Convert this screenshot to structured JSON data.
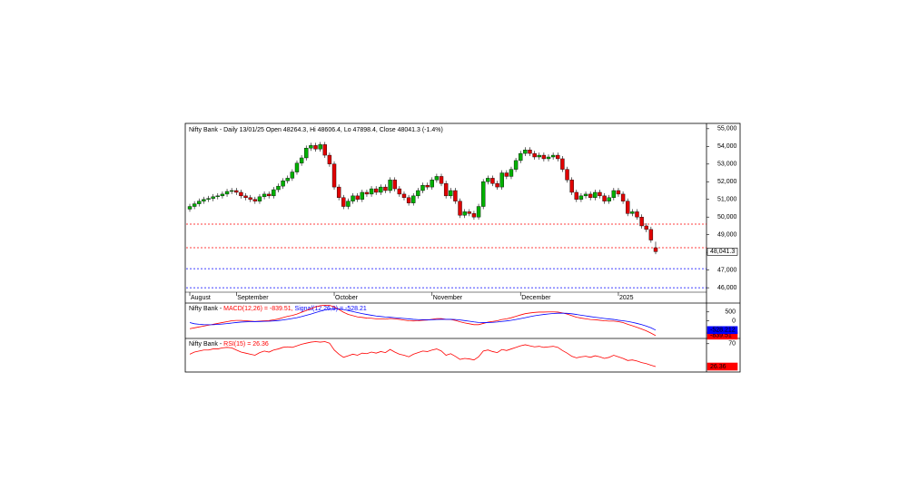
{
  "chart_data": [
    {
      "type": "candlestick",
      "title": "Nifty Bank - Daily 13/01/25 Open 48264.3, Hi 48606.4, Lo 47898.4, Close 48041.3 (-1.4%)",
      "categories": [
        "August",
        null,
        null,
        null,
        null,
        null,
        null,
        null,
        null,
        null,
        "September",
        null,
        null,
        null,
        null,
        null,
        null,
        null,
        null,
        null,
        null,
        null,
        null,
        null,
        null,
        null,
        null,
        null,
        null,
        null,
        null,
        "October",
        null,
        null,
        null,
        null,
        null,
        null,
        null,
        null,
        null,
        null,
        null,
        null,
        null,
        null,
        null,
        null,
        null,
        null,
        null,
        null,
        "November",
        null,
        null,
        null,
        null,
        null,
        null,
        null,
        null,
        null,
        null,
        null,
        null,
        null,
        null,
        null,
        null,
        null,
        null,
        "December",
        null,
        null,
        null,
        null,
        null,
        null,
        null,
        null,
        null,
        null,
        null,
        null,
        null,
        null,
        null,
        null,
        null,
        null,
        null,
        null,
        "2025",
        null,
        null,
        null,
        null,
        null,
        null,
        null,
        null
      ],
      "open": [
        50450,
        50600,
        50750,
        50900,
        51000,
        51050,
        51150,
        51200,
        51300,
        51450,
        51500,
        51400,
        51200,
        51100,
        51000,
        50900,
        51150,
        51300,
        51200,
        51550,
        51750,
        52050,
        52200,
        52550,
        53050,
        53350,
        53900,
        54050,
        53850,
        54100,
        53500,
        53000,
        51700,
        51100,
        50600,
        50900,
        51200,
        51000,
        51400,
        51300,
        51600,
        51400,
        51700,
        51500,
        52100,
        51600,
        51300,
        51100,
        50800,
        51200,
        51500,
        51800,
        51700,
        52100,
        52300,
        51900,
        51200,
        51500,
        50900,
        50100,
        50300,
        50200,
        50000,
        50600,
        52000,
        52200,
        51900,
        51700,
        52500,
        52300,
        52700,
        53200,
        53600,
        53800,
        53600,
        53400,
        53500,
        53300,
        53400,
        53500,
        53300,
        52700,
        52100,
        51400,
        51000,
        51200,
        51300,
        51100,
        51400,
        51200,
        50900,
        51100,
        51500,
        51300,
        50900,
        50200,
        50300,
        50000,
        49500,
        49300,
        48264.3
      ],
      "high": [
        50750,
        50900,
        51050,
        51150,
        51200,
        51300,
        51350,
        51450,
        51600,
        51650,
        51650,
        51550,
        51350,
        51250,
        51150,
        51300,
        51450,
        51450,
        51700,
        51900,
        52200,
        52350,
        52700,
        53200,
        53500,
        54050,
        54200,
        54200,
        54250,
        54250,
        53650,
        53150,
        51850,
        51250,
        51050,
        51350,
        51350,
        51550,
        51550,
        51750,
        51750,
        51850,
        51850,
        52250,
        52250,
        51750,
        51450,
        51250,
        51350,
        51650,
        51950,
        51950,
        52250,
        52450,
        52450,
        52050,
        51650,
        51650,
        51050,
        50450,
        50450,
        50350,
        50750,
        52150,
        52350,
        52350,
        52050,
        52650,
        52650,
        52850,
        53350,
        53750,
        53950,
        53950,
        53750,
        53650,
        53650,
        53550,
        53650,
        53650,
        53450,
        52850,
        52250,
        51550,
        51350,
        51450,
        51450,
        51550,
        51550,
        51350,
        51250,
        51650,
        51650,
        51450,
        51050,
        50450,
        50450,
        50150,
        49650,
        49450,
        48606.4
      ],
      "low": [
        50300,
        50450,
        50600,
        50750,
        50850,
        50900,
        51000,
        51050,
        51150,
        51300,
        51250,
        51050,
        50950,
        50850,
        50750,
        50750,
        51000,
        51050,
        51050,
        51400,
        51600,
        51900,
        52050,
        52400,
        52900,
        53200,
        53750,
        53700,
        53700,
        53350,
        52850,
        51550,
        50950,
        50450,
        50450,
        50750,
        50850,
        50850,
        51150,
        51150,
        51250,
        51250,
        51350,
        51350,
        51450,
        51150,
        50950,
        50650,
        50650,
        51050,
        51350,
        51550,
        51550,
        51950,
        51750,
        51050,
        51050,
        50750,
        49950,
        49950,
        50050,
        49850,
        49850,
        50450,
        51850,
        51750,
        51550,
        51550,
        52150,
        52150,
        52550,
        53050,
        53450,
        53450,
        53250,
        53250,
        53150,
        53150,
        53250,
        53150,
        52550,
        51950,
        51250,
        50850,
        50850,
        51050,
        50950,
        50950,
        51050,
        50750,
        50750,
        50950,
        51150,
        50750,
        50050,
        50050,
        49850,
        49350,
        49150,
        48550,
        47898.4
      ],
      "close": [
        50600,
        50750,
        50900,
        51000,
        51050,
        51150,
        51200,
        51300,
        51450,
        51500,
        51400,
        51200,
        51100,
        51000,
        50900,
        51150,
        51300,
        51200,
        51550,
        51750,
        52050,
        52200,
        52550,
        53050,
        53350,
        53900,
        54050,
        53850,
        54100,
        53500,
        53000,
        51700,
        51100,
        50600,
        50900,
        51200,
        51000,
        51400,
        51300,
        51600,
        51400,
        51700,
        51500,
        52100,
        51600,
        51300,
        51100,
        50800,
        51200,
        51500,
        51800,
        51700,
        52100,
        52300,
        51900,
        51200,
        51500,
        50900,
        50100,
        50300,
        50200,
        50000,
        50600,
        52000,
        52200,
        51900,
        51700,
        52500,
        52300,
        52700,
        53200,
        53600,
        53800,
        53600,
        53400,
        53500,
        53300,
        53400,
        53500,
        53300,
        52700,
        52100,
        51400,
        51000,
        51200,
        51300,
        51100,
        51400,
        51200,
        50900,
        51100,
        51500,
        51300,
        50900,
        50200,
        50300,
        50000,
        49500,
        49300,
        48700,
        48041.3
      ],
      "up_color": "#00b000",
      "down_color": "#e00000",
      "last_label": "48,041.3",
      "hlines": [
        {
          "value": 49600,
          "color": "#ff0000"
        },
        {
          "value": 48264.3,
          "color": "#ff0000"
        },
        {
          "value": 47080,
          "color": "#0000ff"
        },
        {
          "value": 46000,
          "color": "#0000ff"
        }
      ],
      "ylim": [
        45750,
        55300
      ],
      "yticks": [
        {
          "value": 46000,
          "label": "46,000"
        },
        {
          "value": 47000,
          "label": "47,000"
        },
        {
          "value": 48000,
          "label": "48,000"
        },
        {
          "value": 49000,
          "label": "49,000"
        },
        {
          "value": 50000,
          "label": "50,000"
        },
        {
          "value": 51000,
          "label": "51,000"
        },
        {
          "value": 52000,
          "label": "52,000"
        },
        {
          "value": 53000,
          "label": "53,000"
        },
        {
          "value": 54000,
          "label": "54,000"
        },
        {
          "value": 55000,
          "label": "55,000"
        }
      ]
    },
    {
      "type": "line",
      "title": "Nifty Bank -",
      "series": [
        {
          "name": "MACD(12,26) = -839.51,",
          "color": "#ff0000",
          "last_label": "-839.51",
          "values": [
            -450,
            -400,
            -350,
            -300,
            -250,
            -200,
            -150,
            -100,
            -50,
            0,
            20,
            20,
            0,
            -20,
            -40,
            -20,
            0,
            10,
            50,
            100,
            180,
            250,
            300,
            380,
            480,
            580,
            680,
            780,
            850,
            880,
            870,
            780,
            640,
            480,
            360,
            290,
            220,
            190,
            150,
            140,
            110,
            110,
            90,
            130,
            110,
            80,
            40,
            0,
            -10,
            0,
            30,
            40,
            80,
            120,
            120,
            80,
            70,
            20,
            -60,
            -120,
            -170,
            -220,
            -220,
            -150,
            -80,
            -40,
            0,
            70,
            110,
            170,
            250,
            330,
            400,
            440,
            470,
            490,
            490,
            500,
            500,
            490,
            440,
            380,
            290,
            200,
            150,
            110,
            70,
            60,
            30,
            0,
            -20,
            -20,
            -50,
            -100,
            -200,
            -280,
            -370,
            -470,
            -570,
            -700,
            -839.51
          ]
        },
        {
          "name": "Signal(12,26,9) = -528.21",
          "color": "#0000ff",
          "last_label": "-528.212",
          "values": [
            -100,
            -170,
            -200,
            -220,
            -225,
            -220,
            -205,
            -185,
            -160,
            -130,
            -100,
            -75,
            -60,
            -50,
            -48,
            -42,
            -34,
            -25,
            -10,
            10,
            45,
            85,
            130,
            175,
            235,
            305,
            380,
            460,
            540,
            610,
            660,
            685,
            675,
            635,
            580,
            520,
            460,
            405,
            355,
            310,
            270,
            240,
            210,
            195,
            175,
            155,
            130,
            105,
            80,
            65,
            60,
            55,
            60,
            70,
            80,
            80,
            80,
            70,
            45,
            10,
            -25,
            -65,
            -95,
            -105,
            -100,
            -90,
            -70,
            -40,
            -10,
            25,
            70,
            120,
            175,
            230,
            280,
            320,
            355,
            385,
            410,
            425,
            430,
            420,
            395,
            355,
            315,
            275,
            235,
            200,
            165,
            130,
            100,
            75,
            30,
            0,
            -40,
            -90,
            -150,
            -220,
            -300,
            -400,
            -528.21
          ]
        }
      ],
      "ylim": [
        -1000,
        1000
      ],
      "yticks": [
        500,
        0
      ]
    },
    {
      "type": "line",
      "title": "Nifty Bank -",
      "series": [
        {
          "name": "RSI(15) = 26.36",
          "color": "#ff0000",
          "last_label": "26.36",
          "values": [
            50,
            54,
            56,
            58,
            58,
            60,
            60,
            62,
            63,
            62,
            58,
            54,
            52,
            50,
            48,
            53,
            56,
            54,
            58,
            60,
            63,
            64,
            63,
            66,
            69,
            71,
            73,
            74,
            73,
            74,
            71,
            58,
            50,
            44,
            47,
            50,
            48,
            52,
            51,
            54,
            52,
            55,
            53,
            59,
            54,
            50,
            48,
            45,
            50,
            53,
            56,
            55,
            58,
            60,
            56,
            48,
            51,
            46,
            40,
            42,
            41,
            39,
            45,
            56,
            58,
            55,
            53,
            59,
            57,
            60,
            63,
            66,
            68,
            66,
            64,
            65,
            63,
            64,
            65,
            63,
            57,
            52,
            46,
            43,
            45,
            46,
            44,
            47,
            45,
            42,
            44,
            48,
            45,
            42,
            38,
            39,
            37,
            34,
            32,
            29,
            26.36
          ]
        }
      ],
      "ylim": [
        16,
        80
      ],
      "yticks": [
        70
      ]
    }
  ]
}
